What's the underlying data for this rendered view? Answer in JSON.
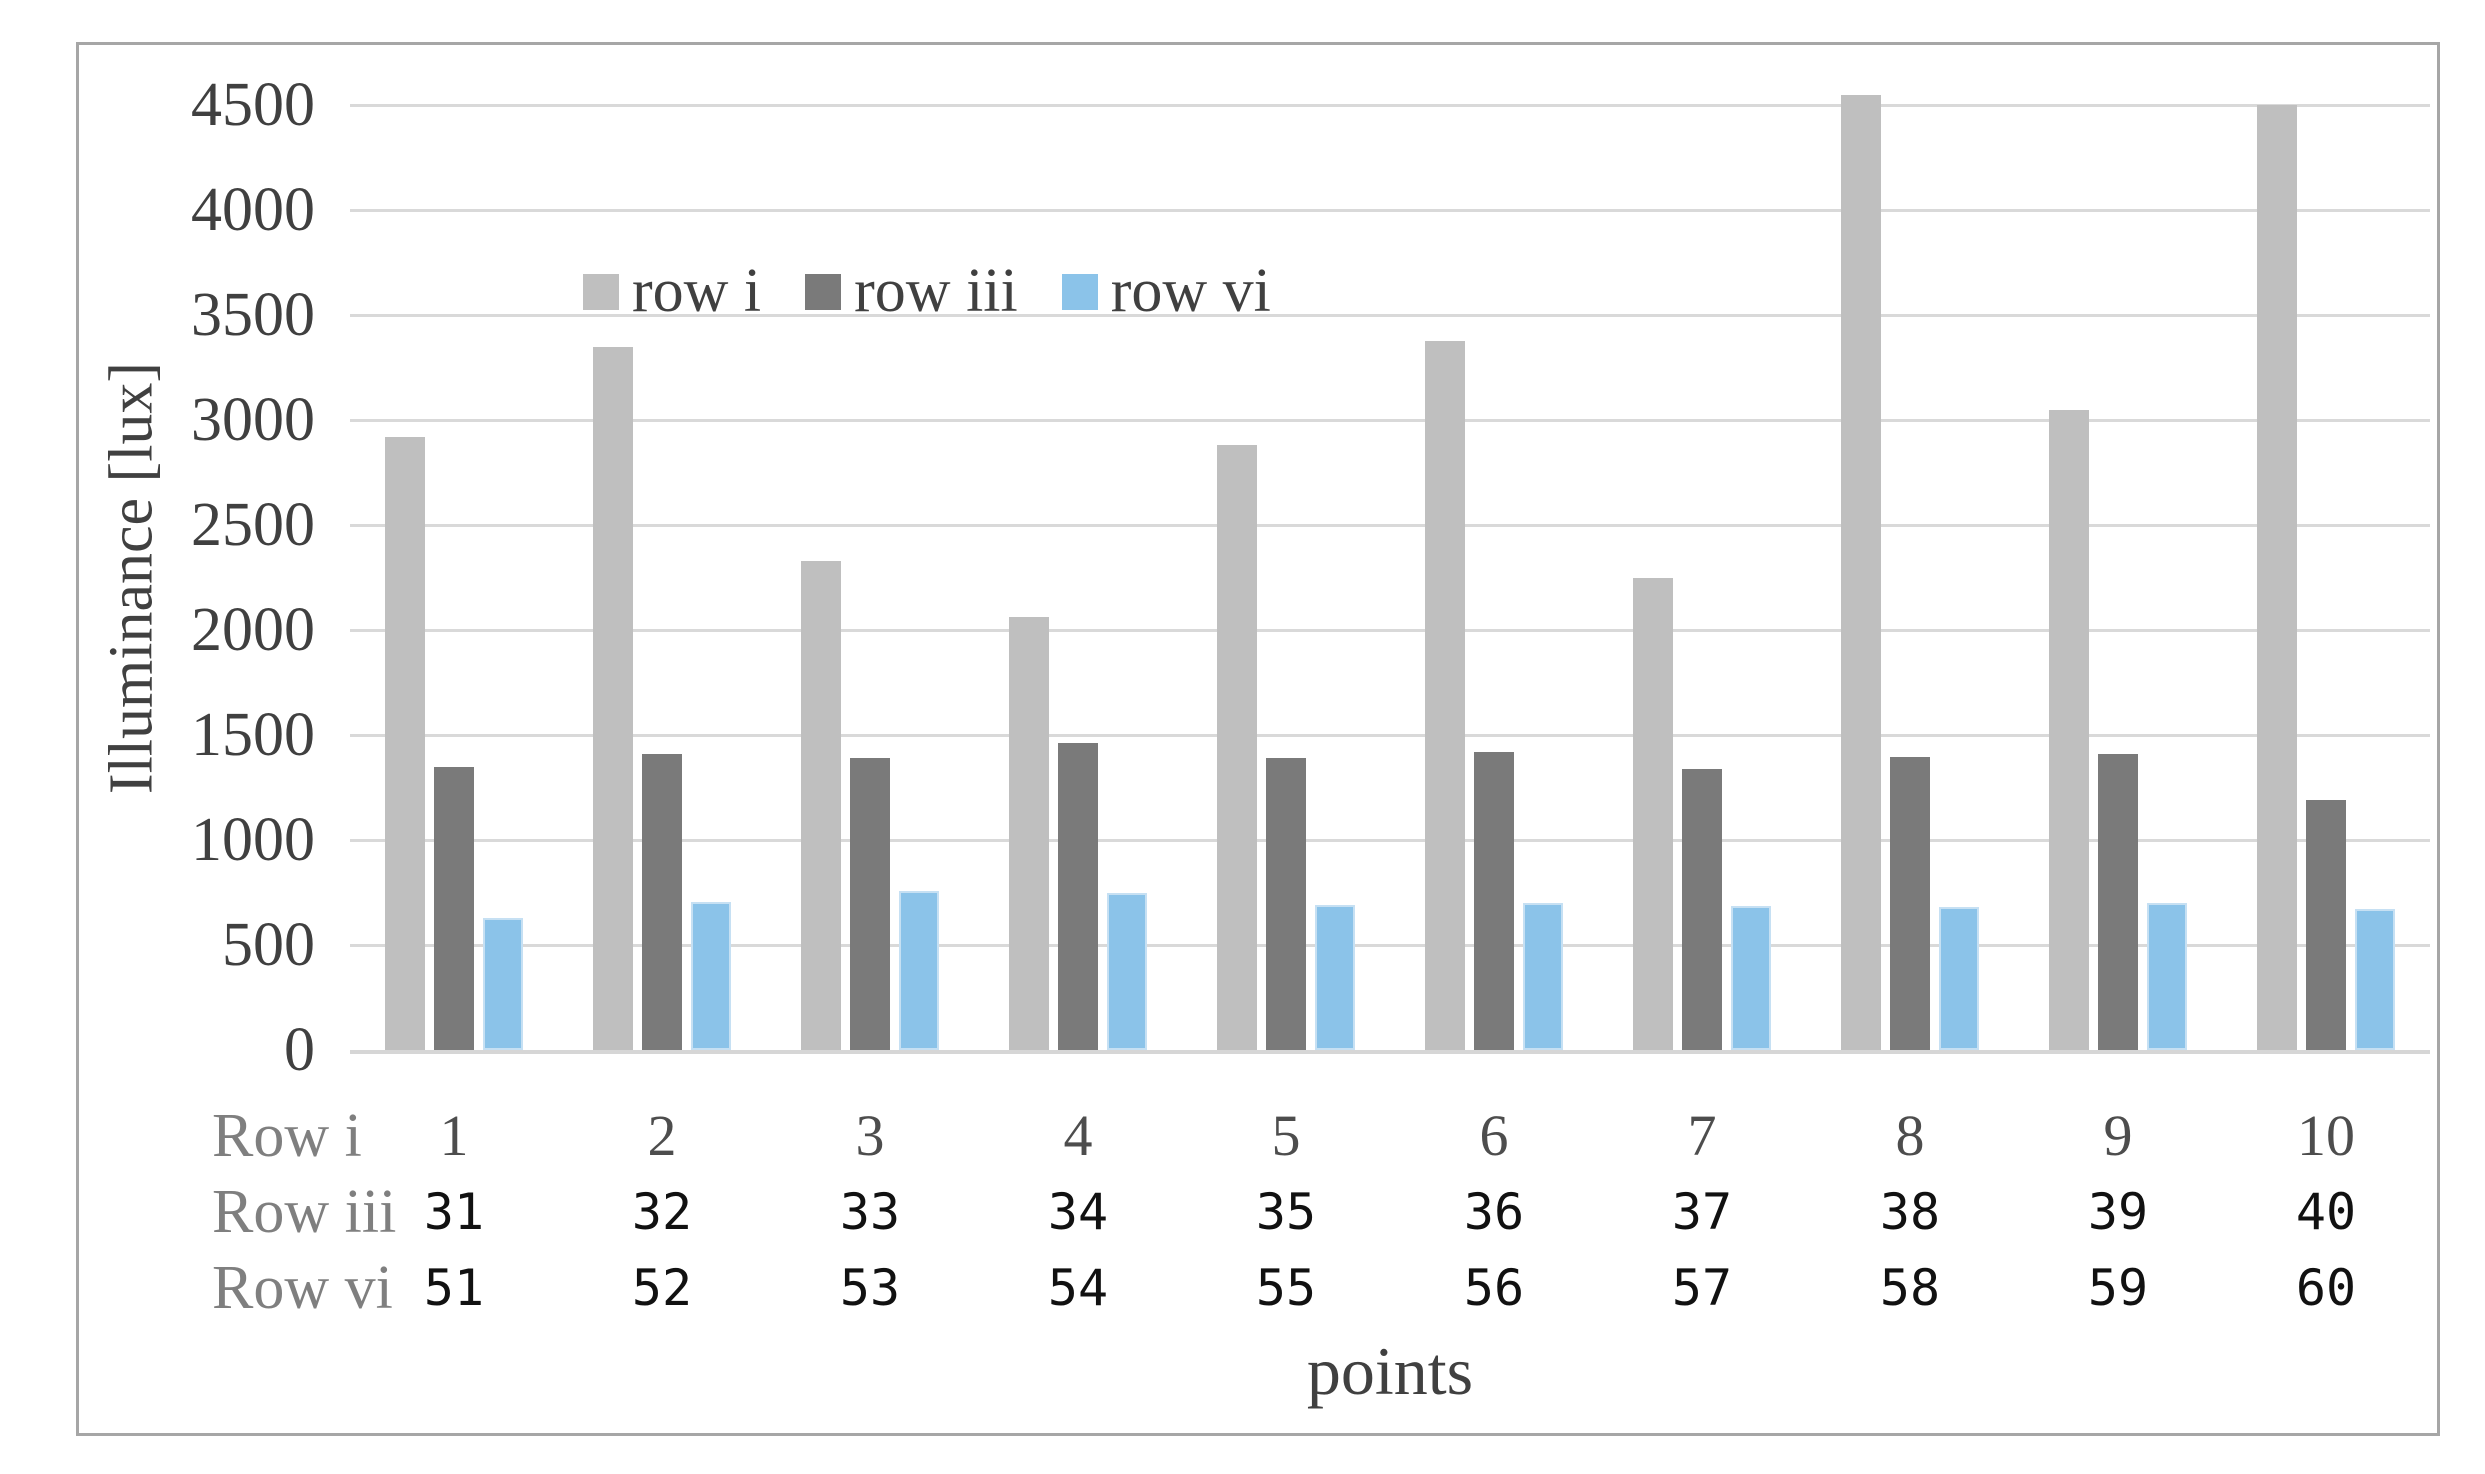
{
  "figure": {
    "y_axis_title": "Illuminance [lux]",
    "x_axis_title": "points"
  },
  "colors": {
    "series_row_i": "#bfbfbf",
    "series_row_iii": "#7a7a7a",
    "series_row_vi": "#8bc3e9",
    "series_row_vi_border": "#c6e0f3",
    "gridline": "#d9d9d9",
    "axis_line": "#d6d6d6",
    "frame_border": "#a6a6a6",
    "text_dark": "#404040",
    "text_gray": "#7f7f7f"
  },
  "chart_data": {
    "type": "bar",
    "title": "",
    "xlabel": "points",
    "ylabel": "Illuminance [lux]",
    "ylim": [
      0,
      4500
    ],
    "ytick_step": 500,
    "yticks": [
      "4500",
      "4000",
      "3500",
      "3000",
      "2500",
      "2000",
      "1500",
      "1000",
      "500",
      "0"
    ],
    "grid": true,
    "legend_position": "inside-upper-left",
    "categories": [
      "1",
      "2",
      "3",
      "4",
      "5",
      "6",
      "7",
      "8",
      "9",
      "10"
    ],
    "category_rows": [
      {
        "label": "Row i",
        "values": [
          "1",
          "2",
          "3",
          "4",
          "5",
          "6",
          "7",
          "8",
          "9",
          "10"
        ]
      },
      {
        "label": "Row iii",
        "values": [
          "31",
          "32",
          "33",
          "34",
          "35",
          "36",
          "37",
          "38",
          "39",
          "40"
        ]
      },
      {
        "label": "Row vi",
        "values": [
          "51",
          "52",
          "53",
          "54",
          "55",
          "56",
          "57",
          "58",
          "59",
          "60"
        ]
      }
    ],
    "series": [
      {
        "name": "row i",
        "color": "#bfbfbf",
        "values": [
          2920,
          3350,
          2330,
          2060,
          2880,
          3375,
          2250,
          4550,
          3050,
          4500
        ]
      },
      {
        "name": "row iii",
        "color": "#7a7a7a",
        "values": [
          1350,
          1410,
          1390,
          1460,
          1390,
          1420,
          1340,
          1395,
          1410,
          1190
        ]
      },
      {
        "name": "row vi",
        "color": "#8bc3e9",
        "values": [
          630,
          705,
          755,
          750,
          690,
          700,
          685,
          680,
          700,
          670
        ]
      }
    ]
  }
}
